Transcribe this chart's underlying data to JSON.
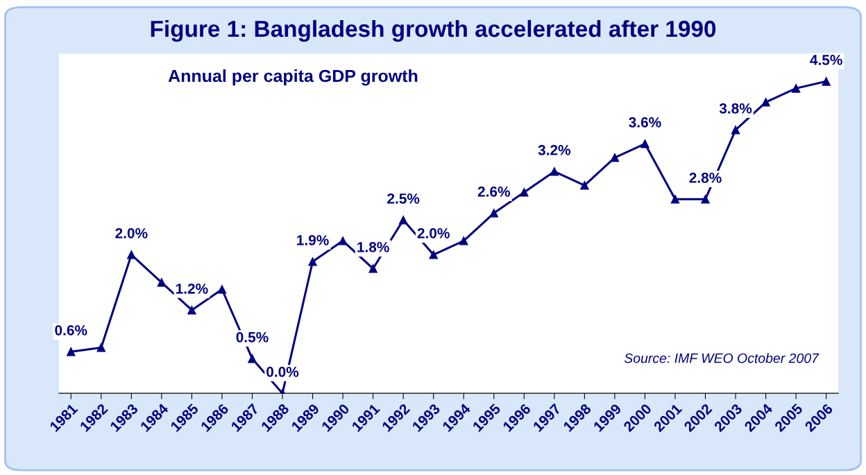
{
  "chart_data": {
    "type": "line",
    "title": "Figure 1: Bangladesh growth accelerated after 1990",
    "subtitle": "Annual per capita GDP growth",
    "annotations": [
      "Source: IMF WEO October 2007"
    ],
    "categories": [
      "1981",
      "1982",
      "1983",
      "1984",
      "1985",
      "1986",
      "1987",
      "1988",
      "1989",
      "1990",
      "1991",
      "1992",
      "1993",
      "1994",
      "1995",
      "1996",
      "1997",
      "1998",
      "1999",
      "2000",
      "2001",
      "2002",
      "2003",
      "2004",
      "2005",
      "2006"
    ],
    "series": [
      {
        "color": "#000080",
        "values": [
          0.6,
          0.66,
          2.0,
          1.6,
          1.2,
          1.5,
          0.5,
          0.0,
          1.9,
          2.2,
          1.8,
          2.5,
          2.0,
          2.2,
          2.6,
          2.9,
          3.2,
          3.0,
          3.4,
          3.6,
          2.8,
          2.8,
          3.8,
          4.2,
          4.4,
          4.5
        ],
        "value_labels": [
          "0.6%",
          null,
          "2.0%",
          null,
          "1.2%",
          null,
          "0.5%",
          "0.0%",
          "1.9%",
          null,
          "1.8%",
          "2.5%",
          "2.0%",
          null,
          "2.6%",
          null,
          "3.2%",
          null,
          null,
          "3.6%",
          null,
          "2.8%",
          "3.8%",
          null,
          null,
          "4.5%"
        ]
      }
    ],
    "ylim": [
      0,
      4.9
    ],
    "tick_labels": "x",
    "marker": "triangle",
    "line_style": "solid",
    "grid": false,
    "legend": false
  }
}
